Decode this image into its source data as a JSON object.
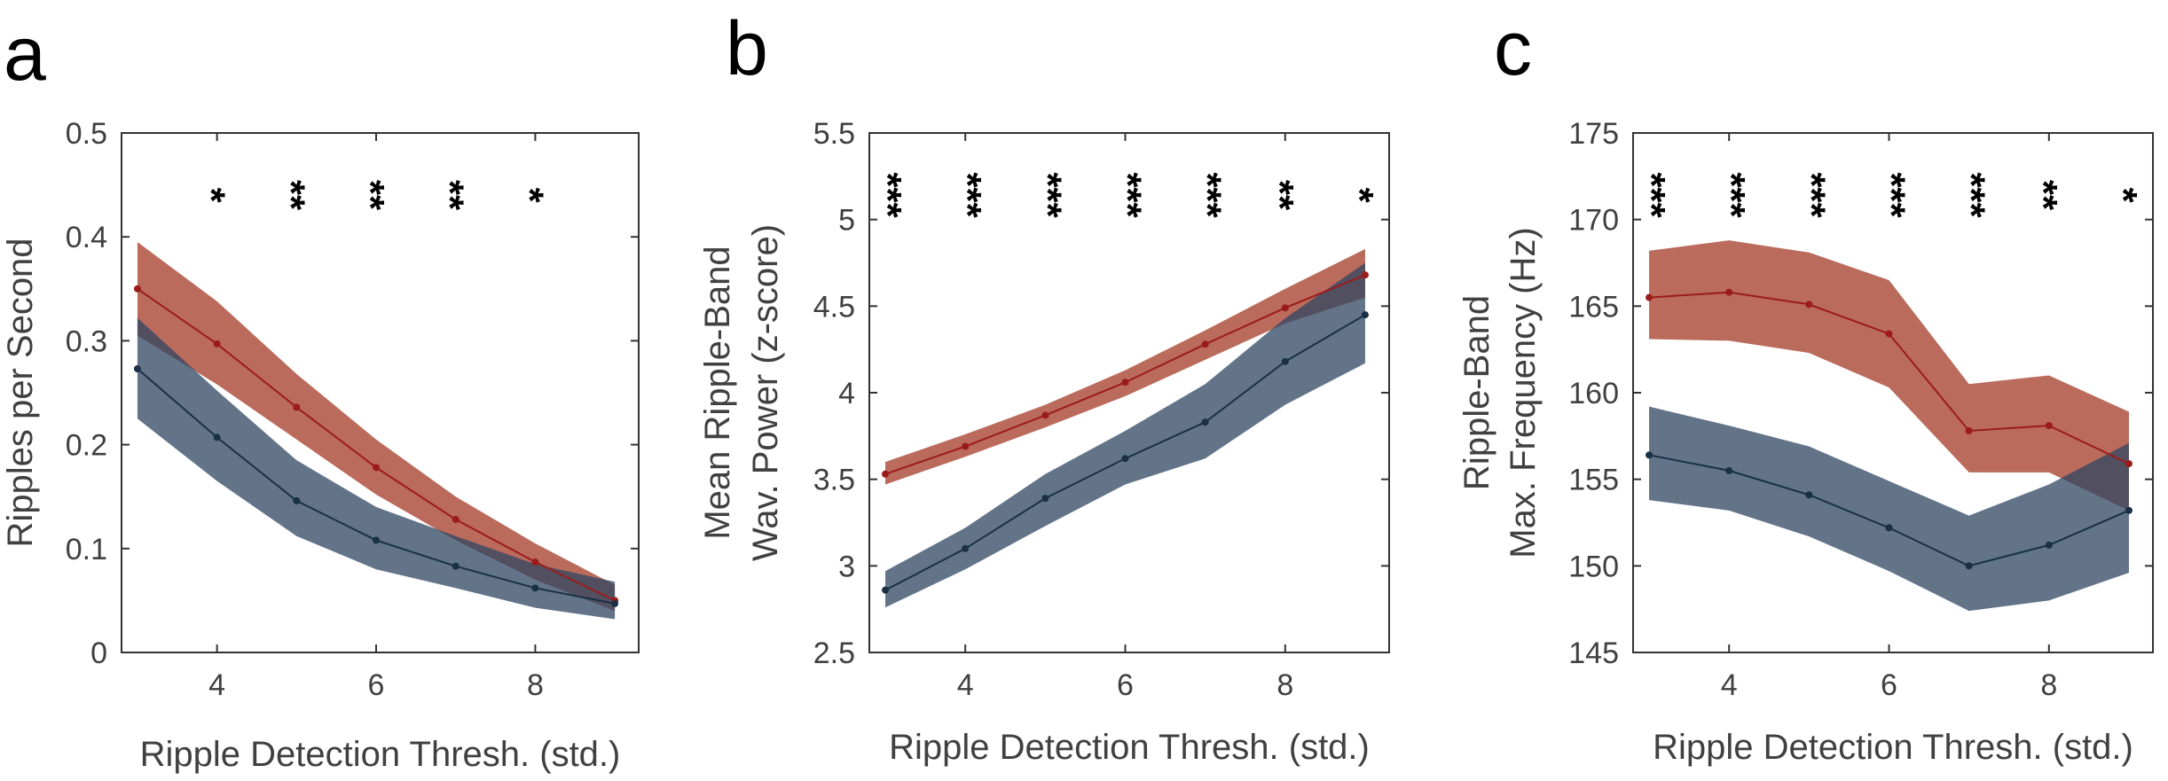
{
  "colors": {
    "red": "#a33a25",
    "red_line": "#9b1b1b",
    "blue": "#2f4562",
    "blue_line": "#193045"
  },
  "chart_data": [
    {
      "panel": "a",
      "type": "line",
      "xlabel": "Ripple Detection Thresh. (std.)",
      "ylabel": [
        "Ripples per Second"
      ],
      "xlim": [
        2.8,
        9.3
      ],
      "ylim": [
        0,
        0.5
      ],
      "xticks": [
        4,
        6,
        8
      ],
      "yticks": [
        0,
        0.1,
        0.2,
        0.3,
        0.4,
        0.5
      ],
      "yticklabels": [
        "0",
        "0.1",
        "0.2",
        "0.3",
        "0.4",
        "0.5"
      ],
      "x": [
        3,
        4,
        5,
        6,
        7,
        8,
        9
      ],
      "series": [
        {
          "color": "red",
          "values": [
            0.35,
            0.297,
            0.236,
            0.178,
            0.128,
            0.087,
            0.05
          ],
          "lower": [
            0.305,
            0.258,
            0.205,
            0.152,
            0.108,
            0.07,
            0.04
          ],
          "upper": [
            0.395,
            0.338,
            0.268,
            0.205,
            0.15,
            0.105,
            0.065
          ]
        },
        {
          "color": "blue",
          "values": [
            0.273,
            0.207,
            0.146,
            0.108,
            0.083,
            0.062,
            0.047
          ],
          "lower": [
            0.225,
            0.165,
            0.112,
            0.08,
            0.062,
            0.043,
            0.032
          ],
          "upper": [
            0.322,
            0.252,
            0.185,
            0.14,
            0.112,
            0.085,
            0.068
          ]
        }
      ],
      "significance": [
        {
          "x": 3.9,
          "stars": "*"
        },
        {
          "x": 4.9,
          "stars": "**"
        },
        {
          "x": 5.9,
          "stars": "**"
        },
        {
          "x": 6.9,
          "stars": "**"
        },
        {
          "x": 7.9,
          "stars": "*"
        }
      ]
    },
    {
      "panel": "b",
      "type": "line",
      "xlabel": "Ripple Detection Thresh. (std.)",
      "ylabel": [
        "Mean Ripple-Band",
        "Wav. Power (z-score)"
      ],
      "xlim": [
        2.8,
        9.3
      ],
      "ylim": [
        2.5,
        5.5
      ],
      "xticks": [
        4,
        6,
        8
      ],
      "yticks": [
        2.5,
        3,
        3.5,
        4,
        4.5,
        5,
        5.5
      ],
      "yticklabels": [
        "2.5",
        "3",
        "3.5",
        "4",
        "4.5",
        "5",
        "5.5"
      ],
      "x": [
        3,
        4,
        5,
        6,
        7,
        8,
        9
      ],
      "series": [
        {
          "color": "red",
          "values": [
            3.53,
            3.69,
            3.87,
            4.06,
            4.28,
            4.49,
            4.68
          ],
          "lower": [
            3.47,
            3.63,
            3.8,
            3.98,
            4.19,
            4.4,
            4.55
          ],
          "upper": [
            3.6,
            3.76,
            3.93,
            4.13,
            4.36,
            4.6,
            4.83
          ]
        },
        {
          "color": "blue",
          "values": [
            2.86,
            3.1,
            3.39,
            3.62,
            3.83,
            4.18,
            4.45
          ],
          "lower": [
            2.76,
            2.98,
            3.23,
            3.47,
            3.62,
            3.93,
            4.17
          ],
          "upper": [
            2.97,
            3.22,
            3.53,
            3.78,
            4.05,
            4.43,
            4.75
          ]
        }
      ],
      "significance": [
        {
          "x": 3.0,
          "stars": "***"
        },
        {
          "x": 4.0,
          "stars": "***"
        },
        {
          "x": 5.0,
          "stars": "***"
        },
        {
          "x": 6.0,
          "stars": "***"
        },
        {
          "x": 7.0,
          "stars": "***"
        },
        {
          "x": 7.9,
          "stars": "**"
        },
        {
          "x": 8.9,
          "stars": "*"
        }
      ]
    },
    {
      "panel": "c",
      "type": "line",
      "xlabel": "Ripple Detection Thresh. (std.)",
      "ylabel": [
        "Ripple-Band",
        "Max. Frequency (Hz)"
      ],
      "xlim": [
        2.8,
        9.3
      ],
      "ylim": [
        145,
        175
      ],
      "xticks": [
        4,
        6,
        8
      ],
      "yticks": [
        145,
        150,
        155,
        160,
        165,
        170,
        175
      ],
      "yticklabels": [
        "145",
        "150",
        "155",
        "160",
        "165",
        "170",
        "175"
      ],
      "x": [
        3,
        4,
        5,
        6,
        7,
        8,
        9
      ],
      "series": [
        {
          "color": "red",
          "values": [
            165.5,
            165.8,
            165.1,
            163.4,
            157.8,
            158.1,
            155.9
          ],
          "lower": [
            163.1,
            163.0,
            162.3,
            160.3,
            155.4,
            155.4,
            153.2
          ],
          "upper": [
            168.2,
            168.8,
            168.1,
            166.5,
            160.5,
            161.0,
            158.9
          ]
        },
        {
          "color": "blue",
          "values": [
            156.4,
            155.5,
            154.1,
            152.2,
            150.0,
            151.2,
            153.2
          ],
          "lower": [
            153.8,
            153.2,
            151.7,
            149.7,
            147.4,
            148.0,
            149.6
          ],
          "upper": [
            159.2,
            158.1,
            156.9,
            154.9,
            152.9,
            154.7,
            157.1
          ]
        }
      ],
      "significance": [
        {
          "x": 3.0,
          "stars": "***"
        },
        {
          "x": 4.0,
          "stars": "***"
        },
        {
          "x": 5.0,
          "stars": "***"
        },
        {
          "x": 6.0,
          "stars": "***"
        },
        {
          "x": 7.0,
          "stars": "***"
        },
        {
          "x": 7.9,
          "stars": "**"
        },
        {
          "x": 8.9,
          "stars": "*"
        }
      ]
    }
  ]
}
